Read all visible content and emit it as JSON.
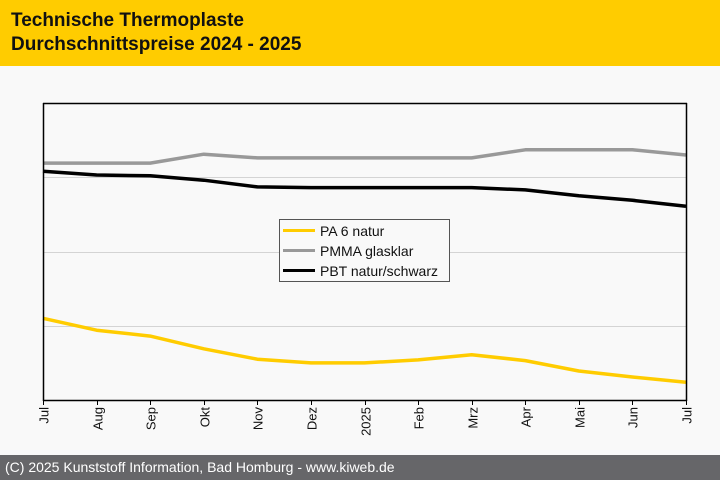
{
  "header": {
    "title_line1": "Technische Thermoplaste",
    "title_line2": "Durchschnittspreise 2024 - 2025",
    "background_color": "#ffcc00"
  },
  "footer": {
    "text": "(C) 2025 Kunststoff Information, Bad Homburg - www.kiweb.de",
    "background_color": "#666669"
  },
  "chart_data": {
    "type": "line",
    "title": "Technische Thermoplaste Durchschnittspreise 2024 - 2025",
    "xlabel": "",
    "ylabel": "",
    "y_tick_labels_shown": false,
    "y_units_note": "relative index (no y-axis labels shown; 1 unit = 1 gridline interval)",
    "ylim": [
      0,
      4
    ],
    "grid": true,
    "gridlines_y": [
      1,
      2,
      3
    ],
    "legend_position": "center",
    "categories": [
      "Jul",
      "Aug",
      "Sep",
      "Okt",
      "Nov",
      "Dez",
      "2025",
      "Feb",
      "Mrz",
      "Apr",
      "Mai",
      "Jun",
      "Jul"
    ],
    "series": [
      {
        "name": "PA 6 natur",
        "color": "#ffcc00",
        "values": [
          1.1,
          0.94,
          0.86,
          0.69,
          0.55,
          0.5,
          0.5,
          0.54,
          0.61,
          0.53,
          0.39,
          0.31,
          0.24
        ]
      },
      {
        "name": "PMMA glasklar",
        "color": "#999999",
        "values": [
          3.19,
          3.19,
          3.19,
          3.31,
          3.26,
          3.26,
          3.26,
          3.26,
          3.26,
          3.37,
          3.37,
          3.37,
          3.3
        ]
      },
      {
        "name": "PBT natur/schwarz",
        "color": "#000000",
        "values": [
          3.08,
          3.03,
          3.02,
          2.96,
          2.87,
          2.86,
          2.86,
          2.86,
          2.86,
          2.83,
          2.75,
          2.69,
          2.61
        ]
      }
    ]
  }
}
